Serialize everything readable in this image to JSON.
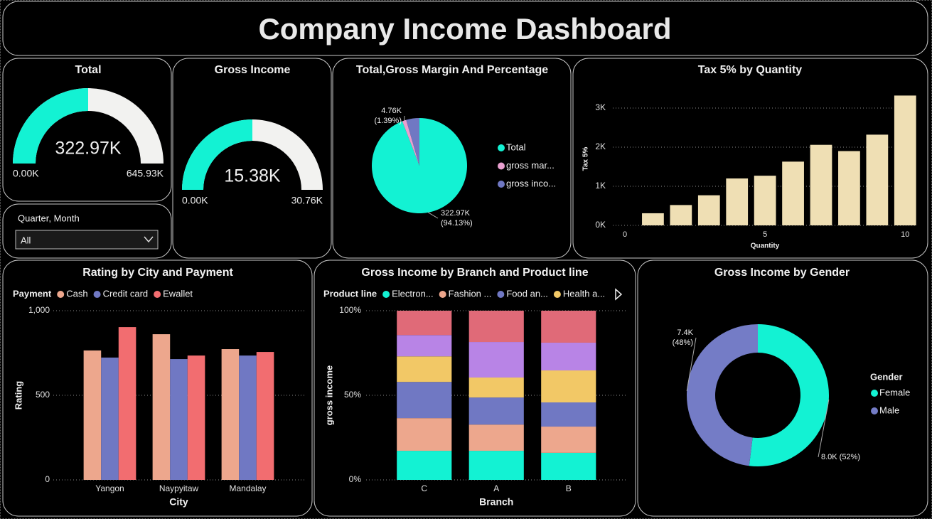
{
  "title": "Company Income Dashboard",
  "slicer": {
    "label": "Quarter, Month",
    "value": "All"
  },
  "chart_data": [
    {
      "type": "gauge",
      "title": "Total",
      "values": [
        322970
      ],
      "value_labels": [
        "322.97K"
      ],
      "ylim": [
        0,
        645930
      ],
      "yticks": [
        {
          "value": 0,
          "label": "0.00K"
        },
        {
          "value": 645930,
          "label": "645.93K"
        }
      ],
      "color": "#13f2d3",
      "track_color": "#f2f2f0"
    },
    {
      "type": "gauge",
      "title": "Gross Income",
      "values": [
        15380
      ],
      "value_labels": [
        "15.38K"
      ],
      "ylim": [
        0,
        30760
      ],
      "yticks": [
        {
          "value": 0,
          "label": "0.00K"
        },
        {
          "value": 30760,
          "label": "30.76K"
        }
      ],
      "color": "#13f2d3",
      "track_color": "#f2f2f0"
    },
    {
      "type": "pie",
      "title": "Total,Gross Margin And Percentage",
      "categories": [
        "Total",
        "gross mar...",
        "gross inco..."
      ],
      "values": [
        322970,
        4760,
        15380
      ],
      "value_labels": [
        "322.97K\n(94.13%)",
        "4.76K\n(1.39%)",
        null
      ],
      "colors": [
        "#13f2d3",
        "#e9a0d0",
        "#7078c3"
      ],
      "legend": "right"
    },
    {
      "type": "bar",
      "title": "Tax 5% by Quantity",
      "x": [
        1,
        2,
        3,
        4,
        5,
        6,
        7,
        8,
        9,
        10
      ],
      "values": [
        310,
        520,
        770,
        1200,
        1270,
        1630,
        2060,
        1900,
        2320,
        3320
      ],
      "xlim": [
        0,
        10.5
      ],
      "xticks": [
        0,
        5,
        10
      ],
      "ylim": [
        0,
        3400
      ],
      "yticks": [
        {
          "value": 0,
          "label": "0K"
        },
        {
          "value": 1000,
          "label": "1K"
        },
        {
          "value": 2000,
          "label": "2K"
        },
        {
          "value": 3000,
          "label": "3K"
        }
      ],
      "xlabel": "Quantity",
      "ylabel": "Tax 5%",
      "color": "#efdfb4",
      "grid": true
    },
    {
      "type": "grouped_bar",
      "title": "Rating by City and Payment",
      "categories": [
        "Yangon",
        "Naypyitaw",
        "Mandalay"
      ],
      "legend_title": "Payment",
      "legend": "top-left",
      "series": [
        {
          "name": "Cash",
          "color": "#eda78d",
          "values": [
            765,
            861,
            773
          ]
        },
        {
          "name": "Credit card",
          "color": "#7078c3",
          "values": [
            723,
            714,
            735
          ]
        },
        {
          "name": "Ewallet",
          "color": "#f26d70",
          "values": [
            903,
            735,
            756
          ]
        }
      ],
      "ylim": [
        0,
        1000
      ],
      "yticks": [
        0,
        500,
        {
          "value": 1000,
          "label": "1,000"
        }
      ],
      "xlabel": "City",
      "ylabel": "Rating",
      "grid": true
    },
    {
      "type": "stacked_bar_100",
      "title": "Gross Income by Branch and Product line",
      "categories": [
        "C",
        "A",
        "B"
      ],
      "legend_title": "Product line",
      "legend": "top-left",
      "series": [
        {
          "name": "Electron...",
          "color": "#13f2d3",
          "values": [
            17.2,
            17.2,
            16.0
          ]
        },
        {
          "name": "Fashion ...",
          "color": "#eda78d",
          "values": [
            19.3,
            15.5,
            15.5
          ]
        },
        {
          "name": "Food an...",
          "color": "#7078c3",
          "values": [
            21.4,
            16.0,
            14.3
          ]
        },
        {
          "name": "Health a...",
          "color": "#f2c866",
          "values": [
            15.1,
            11.8,
            18.9
          ]
        },
        {
          "color": "#b884e6",
          "values": [
            12.6,
            21.0,
            16.4
          ]
        },
        {
          "color": "#e06a78",
          "values": [
            14.4,
            18.5,
            18.9
          ]
        }
      ],
      "ylim": [
        0,
        100
      ],
      "yticks": [
        {
          "value": 0,
          "label": "0%"
        },
        {
          "value": 50,
          "label": "50%"
        },
        {
          "value": 100,
          "label": "100%"
        }
      ],
      "xlabel": "Branch",
      "ylabel": "gross income",
      "grid": true
    },
    {
      "type": "donut",
      "title": "Gross Income by Gender",
      "categories": [
        "Female",
        "Male"
      ],
      "values": [
        8000,
        7400
      ],
      "value_labels": [
        "8.0K (52%)",
        "7.4K\n(48%)"
      ],
      "colors": [
        "#13f2d3",
        "#747cc6"
      ],
      "legend_title": "Gender",
      "legend": "right"
    }
  ]
}
